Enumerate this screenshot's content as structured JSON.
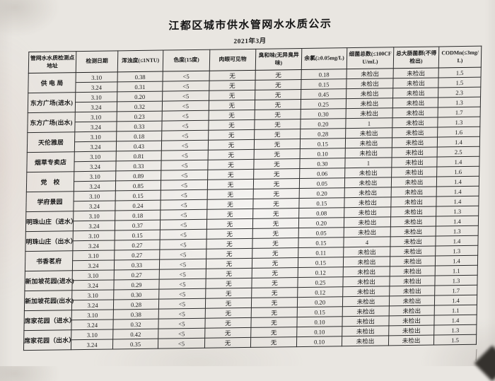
{
  "page": {
    "title": "江都区城市供水管网水水质公示",
    "subtitle": "2021年3月"
  },
  "table": {
    "headers": [
      "管网水水质检测点地址",
      "检测日期",
      "浑浊度(≤1NTU)",
      "色度(15度)",
      "肉眼可见物",
      "臭和味(无异臭异味)",
      "余氯(≥0.05mg/L)",
      "细菌总数(≤100CFU/mL)",
      "总大肠菌群(不得检出)",
      "CODMn(≤3mg/L)"
    ],
    "row_keys": [
      "date",
      "turbidity",
      "chroma",
      "visible",
      "odor",
      "chlorine",
      "bacteria",
      "coliform",
      "codmn"
    ],
    "sites": [
      {
        "name": "供 电 局",
        "rows": [
          {
            "date": "3.10",
            "turbidity": "0.38",
            "chroma": "<5",
            "visible": "无",
            "odor": "无",
            "chlorine": "0.18",
            "bacteria": "未检出",
            "coliform": "未检出",
            "codmn": "1.5"
          },
          {
            "date": "3.24",
            "turbidity": "0.31",
            "chroma": "<5",
            "visible": "无",
            "odor": "无",
            "chlorine": "0.15",
            "bacteria": "未检出",
            "coliform": "未检出",
            "codmn": "1.5"
          }
        ]
      },
      {
        "name": "东方广场(进水)",
        "rows": [
          {
            "date": "3.10",
            "turbidity": "0.20",
            "chroma": "<5",
            "visible": "无",
            "odor": "无",
            "chlorine": "0.45",
            "bacteria": "未检出",
            "coliform": "未检出",
            "codmn": "2.3"
          },
          {
            "date": "3.24",
            "turbidity": "0.32",
            "chroma": "<5",
            "visible": "无",
            "odor": "无",
            "chlorine": "0.25",
            "bacteria": "未检出",
            "coliform": "未检出",
            "codmn": "1.3"
          }
        ]
      },
      {
        "name": "东方广场(出水)",
        "rows": [
          {
            "date": "3.10",
            "turbidity": "0.23",
            "chroma": "<5",
            "visible": "无",
            "odor": "无",
            "chlorine": "0.30",
            "bacteria": "未检出",
            "coliform": "未检出",
            "codmn": "1.7"
          },
          {
            "date": "3.24",
            "turbidity": "0.33",
            "chroma": "<5",
            "visible": "无",
            "odor": "无",
            "chlorine": "0.20",
            "bacteria": "1",
            "coliform": "未检出",
            "codmn": "1.3"
          }
        ]
      },
      {
        "name": "天伦雅居",
        "rows": [
          {
            "date": "3.10",
            "turbidity": "0.18",
            "chroma": "<5",
            "visible": "无",
            "odor": "无",
            "chlorine": "0.28",
            "bacteria": "未检出",
            "coliform": "未检出",
            "codmn": "1.6"
          },
          {
            "date": "3.24",
            "turbidity": "0.43",
            "chroma": "<5",
            "visible": "无",
            "odor": "无",
            "chlorine": "0.15",
            "bacteria": "未检出",
            "coliform": "未检出",
            "codmn": "1.4"
          }
        ]
      },
      {
        "name": "烟草专卖店",
        "rows": [
          {
            "date": "3.10",
            "turbidity": "0.81",
            "chroma": "<5",
            "visible": "无",
            "odor": "无",
            "chlorine": "0.10",
            "bacteria": "未检出",
            "coliform": "未检出",
            "codmn": "2.5"
          },
          {
            "date": "3.24",
            "turbidity": "0.33",
            "chroma": "<5",
            "visible": "无",
            "odor": "无",
            "chlorine": "0.30",
            "bacteria": "1",
            "coliform": "未检出",
            "codmn": "1.4"
          }
        ]
      },
      {
        "name": "党　校",
        "rows": [
          {
            "date": "3.10",
            "turbidity": "0.89",
            "chroma": "<5",
            "visible": "无",
            "odor": "无",
            "chlorine": "0.06",
            "bacteria": "未检出",
            "coliform": "未检出",
            "codmn": "1.6"
          },
          {
            "date": "3.24",
            "turbidity": "0.85",
            "chroma": "<5",
            "visible": "无",
            "odor": "无",
            "chlorine": "0.05",
            "bacteria": "未检出",
            "coliform": "未检出",
            "codmn": "1.4"
          }
        ]
      },
      {
        "name": "学府景园",
        "rows": [
          {
            "date": "3.10",
            "turbidity": "0.15",
            "chroma": "<5",
            "visible": "无",
            "odor": "无",
            "chlorine": "0.20",
            "bacteria": "未检出",
            "coliform": "未检出",
            "codmn": "1.4"
          },
          {
            "date": "3.24",
            "turbidity": "0.24",
            "chroma": "<5",
            "visible": "无",
            "odor": "无",
            "chlorine": "0.15",
            "bacteria": "未检出",
            "coliform": "未检出",
            "codmn": "1.4"
          }
        ]
      },
      {
        "name": "明珠山庄（进水）",
        "rows": [
          {
            "date": "3.10",
            "turbidity": "0.18",
            "chroma": "<5",
            "visible": "无",
            "odor": "无",
            "chlorine": "0.08",
            "bacteria": "未检出",
            "coliform": "未检出",
            "codmn": "1.3"
          },
          {
            "date": "3.24",
            "turbidity": "0.37",
            "chroma": "<5",
            "visible": "无",
            "odor": "无",
            "chlorine": "0.20",
            "bacteria": "未检出",
            "coliform": "未检出",
            "codmn": "1.4"
          }
        ]
      },
      {
        "name": "明珠山庄（出水）",
        "rows": [
          {
            "date": "3.10",
            "turbidity": "0.15",
            "chroma": "<5",
            "visible": "无",
            "odor": "无",
            "chlorine": "0.05",
            "bacteria": "未检出",
            "coliform": "未检出",
            "codmn": "1.3"
          },
          {
            "date": "3.24",
            "turbidity": "0.27",
            "chroma": "<5",
            "visible": "无",
            "odor": "无",
            "chlorine": "0.15",
            "bacteria": "4",
            "coliform": "未检出",
            "codmn": "1.4"
          }
        ]
      },
      {
        "name": "书香茗府",
        "rows": [
          {
            "date": "3.10",
            "turbidity": "0.27",
            "chroma": "<5",
            "visible": "无",
            "odor": "无",
            "chlorine": "0.11",
            "bacteria": "未检出",
            "coliform": "未检出",
            "codmn": "1.3"
          },
          {
            "date": "3.24",
            "turbidity": "0.33",
            "chroma": "<5",
            "visible": "无",
            "odor": "无",
            "chlorine": "0.15",
            "bacteria": "未检出",
            "coliform": "未检出",
            "codmn": "1.4"
          }
        ]
      },
      {
        "name": "新加坡花园(进水)",
        "rows": [
          {
            "date": "3.10",
            "turbidity": "0.27",
            "chroma": "<5",
            "visible": "无",
            "odor": "无",
            "chlorine": "0.12",
            "bacteria": "未检出",
            "coliform": "未检出",
            "codmn": "1.1"
          },
          {
            "date": "3.24",
            "turbidity": "0.29",
            "chroma": "<5",
            "visible": "无",
            "odor": "无",
            "chlorine": "0.25",
            "bacteria": "未检出",
            "coliform": "未检出",
            "codmn": "1.3"
          }
        ]
      },
      {
        "name": "新加坡花园(出水)",
        "rows": [
          {
            "date": "3.10",
            "turbidity": "0.30",
            "chroma": "<5",
            "visible": "无",
            "odor": "无",
            "chlorine": "0.12",
            "bacteria": "未检出",
            "coliform": "未检出",
            "codmn": "1.7"
          },
          {
            "date": "3.24",
            "turbidity": "0.28",
            "chroma": "<5",
            "visible": "无",
            "odor": "无",
            "chlorine": "0.20",
            "bacteria": "未检出",
            "coliform": "未检出",
            "codmn": "1.4"
          }
        ]
      },
      {
        "name": "席家花园（进水）",
        "rows": [
          {
            "date": "3.10",
            "turbidity": "0.38",
            "chroma": "<5",
            "visible": "无",
            "odor": "无",
            "chlorine": "0.15",
            "bacteria": "未检出",
            "coliform": "未检出",
            "codmn": "1.1"
          },
          {
            "date": "3.24",
            "turbidity": "0.32",
            "chroma": "<5",
            "visible": "无",
            "odor": "无",
            "chlorine": "0.10",
            "bacteria": "未检出",
            "coliform": "未检出",
            "codmn": "1.4"
          }
        ]
      },
      {
        "name": "席家花园（出水）",
        "rows": [
          {
            "date": "3.10",
            "turbidity": "0.42",
            "chroma": "<5",
            "visible": "无",
            "odor": "无",
            "chlorine": "0.10",
            "bacteria": "未检出",
            "coliform": "未检出",
            "codmn": "1.3"
          },
          {
            "date": "3.24",
            "turbidity": "0.35",
            "chroma": "<5",
            "visible": "无",
            "odor": "无",
            "chlorine": "0.10",
            "bacteria": "未检出",
            "coliform": "未检出",
            "codmn": "1.5"
          }
        ]
      }
    ]
  }
}
